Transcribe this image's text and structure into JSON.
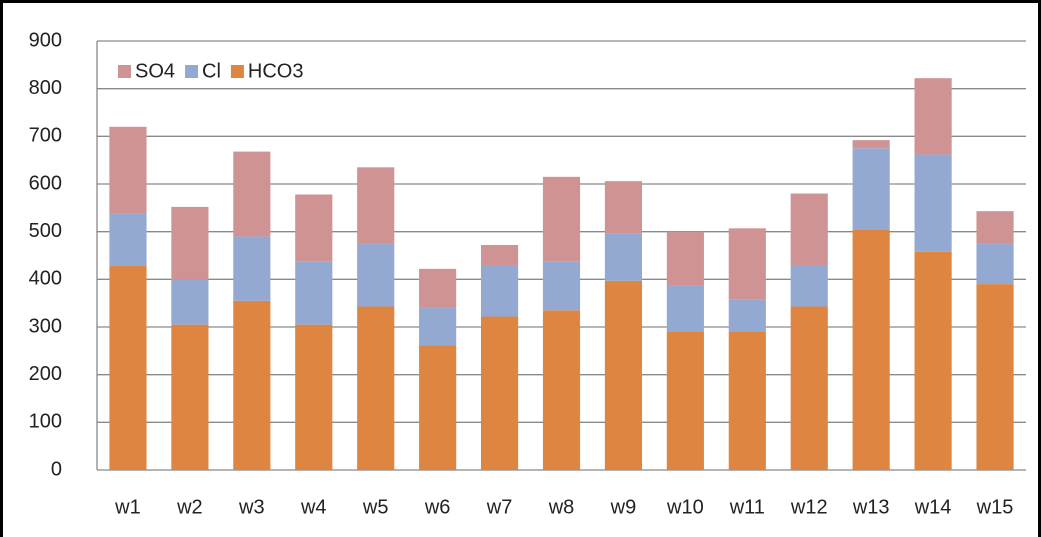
{
  "chart_data": {
    "type": "stacked_bar",
    "categories": [
      "w1",
      "w2",
      "w3",
      "w4",
      "w5",
      "w6",
      "w7",
      "w8",
      "w9",
      "w10",
      "w11",
      "w12",
      "w13",
      "w14",
      "w15"
    ],
    "series": [
      {
        "name": "SO4",
        "color": "#d09393",
        "values": [
          181,
          152,
          178,
          141,
          160,
          82,
          42,
          178,
          109,
          112,
          149,
          150,
          17,
          160,
          68
        ]
      },
      {
        "name": "Cl",
        "color": "#94a9d1",
        "values": [
          111,
          95,
          135,
          132,
          132,
          78,
          108,
          102,
          100,
          97,
          67,
          87,
          170,
          204,
          85
        ]
      },
      {
        "name": "HCO3",
        "color": "#de8641",
        "values": [
          428,
          305,
          355,
          305,
          343,
          262,
          322,
          335,
          397,
          291,
          291,
          343,
          505,
          458,
          390
        ]
      }
    ],
    "ylim": [
      0,
      900
    ],
    "yticks": [
      0,
      100,
      200,
      300,
      400,
      500,
      600,
      700,
      800,
      900
    ],
    "grid": true,
    "legend": "top-left"
  }
}
